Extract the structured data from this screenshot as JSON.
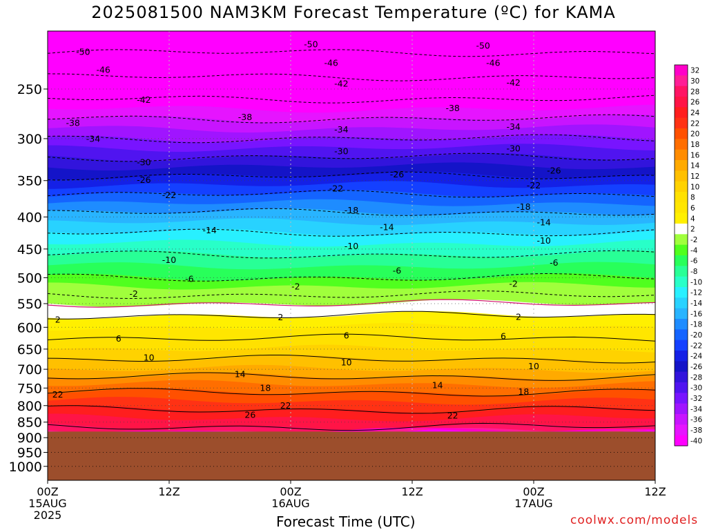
{
  "chart_data": {
    "type": "heatmap",
    "title": "2025081500 NAM3KM Forecast Temperature (ºC) for KAMA",
    "xlabel": "Forecast Time (UTC)",
    "ylabel": "",
    "y_axis": {
      "scale": "log-pressure",
      "ticks": [
        250,
        300,
        350,
        400,
        450,
        500,
        550,
        600,
        650,
        700,
        750,
        800,
        850,
        900,
        950,
        1000
      ],
      "range": [
        200,
        1050
      ]
    },
    "x_axis": {
      "range_hours": [
        0,
        60
      ],
      "ticks": [
        {
          "hour": 0,
          "line1": "00Z",
          "line2": "15AUG",
          "line3": "2025"
        },
        {
          "hour": 12,
          "line1": "12Z",
          "line2": "",
          "line3": ""
        },
        {
          "hour": 24,
          "line1": "00Z",
          "line2": "16AUG",
          "line3": ""
        },
        {
          "hour": 36,
          "line1": "12Z",
          "line2": "",
          "line3": ""
        },
        {
          "hour": 48,
          "line1": "00Z",
          "line2": "17AUG",
          "line3": ""
        },
        {
          "hour": 60,
          "line1": "12Z",
          "line2": "",
          "line3": ""
        }
      ]
    },
    "colorbar": {
      "labels": [
        "32",
        "30",
        "28",
        "26",
        "24",
        "22",
        "20",
        "18",
        "16",
        "14",
        "12",
        "10",
        "8",
        "6",
        "4",
        "2",
        "-2",
        "-4",
        "-6",
        "-8",
        "-10",
        "-12",
        "-14",
        "-16",
        "-18",
        "-20",
        "-22",
        "-24",
        "-26",
        "-28",
        "-30",
        "-32",
        "-34",
        "-36",
        "-38",
        "-40"
      ],
      "colors": [
        "#ff00c8",
        "#ff1e96",
        "#ff1464",
        "#ff1446",
        "#ff1e1e",
        "#ff3214",
        "#ff5000",
        "#ff6e00",
        "#ff8c00",
        "#ffaa00",
        "#ffc000",
        "#ffd200",
        "#ffe100",
        "#ffe600",
        "#fff000",
        "#ffffff",
        "#a0ff3c",
        "#50ff1e",
        "#28ff5a",
        "#28ff96",
        "#28ffc8",
        "#28f0ff",
        "#28d2ff",
        "#28b4ff",
        "#1e8cff",
        "#1464ff",
        "#1440ff",
        "#1420e6",
        "#1414c8",
        "#3214dc",
        "#5014f0",
        "#7814ff",
        "#a014ff",
        "#c814ff",
        "#e614ff",
        "#ff00ff"
      ]
    },
    "temperature_profile": [
      {
        "p": 200,
        "t": -54
      },
      {
        "p": 250,
        "t": -44
      },
      {
        "p": 300,
        "t": -34
      },
      {
        "p": 350,
        "t": -25
      },
      {
        "p": 400,
        "t": -17
      },
      {
        "p": 450,
        "t": -11
      },
      {
        "p": 500,
        "t": -6
      },
      {
        "p": 550,
        "t": 0
      },
      {
        "p": 600,
        "t": 4
      },
      {
        "p": 650,
        "t": 8
      },
      {
        "p": 700,
        "t": 12
      },
      {
        "p": 750,
        "t": 17
      },
      {
        "p": 800,
        "t": 21
      },
      {
        "p": 850,
        "t": 25
      },
      {
        "p": 880,
        "t": 27
      }
    ],
    "surface_pressure": 880,
    "ground_color": "#9c4e2c",
    "contour_labels": [
      {
        "text": "-50",
        "hour": 3.5,
        "p": 218
      },
      {
        "text": "-50",
        "hour": 26,
        "p": 212
      },
      {
        "text": "-50",
        "hour": 43,
        "p": 213
      },
      {
        "text": "-46",
        "hour": 5.5,
        "p": 233
      },
      {
        "text": "-46",
        "hour": 28,
        "p": 227
      },
      {
        "text": "-46",
        "hour": 44,
        "p": 227
      },
      {
        "text": "-42",
        "hour": 9.5,
        "p": 260
      },
      {
        "text": "-42",
        "hour": 29,
        "p": 245
      },
      {
        "text": "-42",
        "hour": 46,
        "p": 244
      },
      {
        "text": "-38",
        "hour": 2.5,
        "p": 283
      },
      {
        "text": "-38",
        "hour": 19.5,
        "p": 277
      },
      {
        "text": "-38",
        "hour": 40,
        "p": 268
      },
      {
        "text": "-34",
        "hour": 4.5,
        "p": 300
      },
      {
        "text": "-34",
        "hour": 29,
        "p": 290
      },
      {
        "text": "-34",
        "hour": 46,
        "p": 287
      },
      {
        "text": "-30",
        "hour": 9.5,
        "p": 327
      },
      {
        "text": "-30",
        "hour": 29,
        "p": 314
      },
      {
        "text": "-30",
        "hour": 46,
        "p": 311
      },
      {
        "text": "-26",
        "hour": 9.5,
        "p": 349
      },
      {
        "text": "-26",
        "hour": 34.5,
        "p": 342
      },
      {
        "text": "-26",
        "hour": 50,
        "p": 337
      },
      {
        "text": "-22",
        "hour": 12,
        "p": 369
      },
      {
        "text": "-22",
        "hour": 28.5,
        "p": 360
      },
      {
        "text": "-22",
        "hour": 48,
        "p": 356
      },
      {
        "text": "-18",
        "hour": 30,
        "p": 390
      },
      {
        "text": "-18",
        "hour": 47,
        "p": 385
      },
      {
        "text": "-14",
        "hour": 16,
        "p": 420
      },
      {
        "text": "-14",
        "hour": 33.5,
        "p": 415
      },
      {
        "text": "-14",
        "hour": 49,
        "p": 408
      },
      {
        "text": "-10",
        "hour": 12,
        "p": 468
      },
      {
        "text": "-10",
        "hour": 30,
        "p": 445
      },
      {
        "text": "-10",
        "hour": 49,
        "p": 436
      },
      {
        "text": "-6",
        "hour": 14,
        "p": 502
      },
      {
        "text": "-6",
        "hour": 34.5,
        "p": 487
      },
      {
        "text": "-6",
        "hour": 50,
        "p": 473
      },
      {
        "text": "-2",
        "hour": 8.5,
        "p": 530
      },
      {
        "text": "-2",
        "hour": 24.5,
        "p": 516
      },
      {
        "text": "-2",
        "hour": 46,
        "p": 511
      },
      {
        "text": "2",
        "hour": 1,
        "p": 583
      },
      {
        "text": "2",
        "hour": 23,
        "p": 578
      },
      {
        "text": "2",
        "hour": 46.5,
        "p": 577
      },
      {
        "text": "6",
        "hour": 7,
        "p": 625
      },
      {
        "text": "6",
        "hour": 29.5,
        "p": 618
      },
      {
        "text": "6",
        "hour": 45,
        "p": 620
      },
      {
        "text": "10",
        "hour": 10,
        "p": 670
      },
      {
        "text": "10",
        "hour": 29.5,
        "p": 682
      },
      {
        "text": "10",
        "hour": 48,
        "p": 692
      },
      {
        "text": "14",
        "hour": 19,
        "p": 712
      },
      {
        "text": "14",
        "hour": 38.5,
        "p": 742
      },
      {
        "text": "18",
        "hour": 21.5,
        "p": 749
      },
      {
        "text": "18",
        "hour": 47,
        "p": 760
      },
      {
        "text": "22",
        "hour": 1,
        "p": 768
      },
      {
        "text": "22",
        "hour": 23.5,
        "p": 799
      },
      {
        "text": "22",
        "hour": 40,
        "p": 829
      },
      {
        "text": "26",
        "hour": 20,
        "p": 827
      }
    ]
  },
  "credit": "coolwx.com/models"
}
